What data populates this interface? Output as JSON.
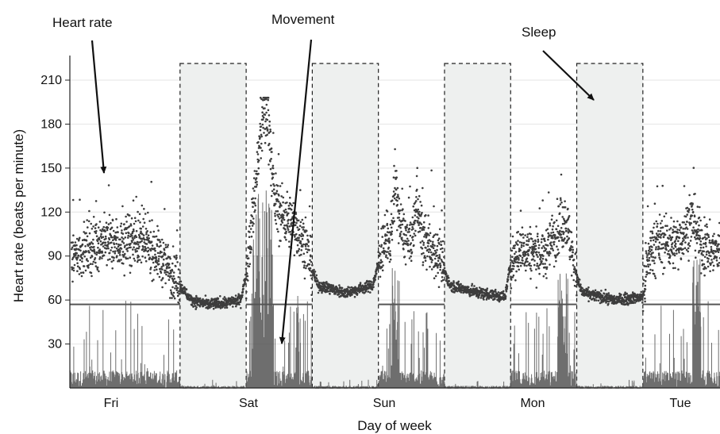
{
  "chart_data": {
    "type": "scatter",
    "title": "",
    "xlabel": "Day of week",
    "ylabel": "Heart rate (beats per minute)",
    "x_categories": [
      "Fri",
      "Sat",
      "Sun",
      "Mon",
      "Tue"
    ],
    "yticks": [
      30,
      60,
      90,
      120,
      150,
      180,
      210
    ],
    "ylim": [
      0,
      210
    ],
    "grid": "horizontal",
    "annotations": [
      "Heart rate",
      "Movement",
      "Sleep"
    ],
    "sleep_periods": [
      {
        "start_hour": 20,
        "end_hour": 32
      },
      {
        "start_hour": 44,
        "end_hour": 56
      },
      {
        "start_hour": 68,
        "end_hour": 80
      },
      {
        "start_hour": 92,
        "end_hour": 104
      }
    ],
    "reference_line_bpm": 57,
    "series": [
      {
        "name": "Heart rate",
        "kind": "scatter",
        "color": "#444444",
        "profile": [
          [
            0,
            88
          ],
          [
            3,
            95
          ],
          [
            6,
            100
          ],
          [
            9,
            98
          ],
          [
            12,
            102
          ],
          [
            15,
            95
          ],
          [
            18,
            82
          ],
          [
            20,
            70
          ],
          [
            22,
            60
          ],
          [
            25,
            57
          ],
          [
            28,
            58
          ],
          [
            31,
            60
          ],
          [
            32,
            78
          ],
          [
            33,
            110
          ],
          [
            34,
            150
          ],
          [
            35,
            185
          ],
          [
            36,
            188
          ],
          [
            37,
            130
          ],
          [
            38,
            120
          ],
          [
            41,
            110
          ],
          [
            43,
            95
          ],
          [
            44,
            80
          ],
          [
            45,
            70
          ],
          [
            50,
            65
          ],
          [
            55,
            70
          ],
          [
            56,
            85
          ],
          [
            57,
            100
          ],
          [
            58,
            95
          ],
          [
            59,
            140
          ],
          [
            60,
            110
          ],
          [
            62,
            95
          ],
          [
            63,
            130
          ],
          [
            64,
            100
          ],
          [
            66,
            95
          ],
          [
            68,
            80
          ],
          [
            69,
            70
          ],
          [
            74,
            65
          ],
          [
            79,
            62
          ],
          [
            80,
            85
          ],
          [
            82,
            95
          ],
          [
            86,
            90
          ],
          [
            88,
            105
          ],
          [
            90,
            115
          ],
          [
            92,
            75
          ],
          [
            93,
            65
          ],
          [
            99,
            60
          ],
          [
            104,
            62
          ],
          [
            105,
            90
          ],
          [
            107,
            100
          ],
          [
            110,
            98
          ],
          [
            113,
            115
          ],
          [
            115,
            95
          ],
          [
            118,
            92
          ]
        ]
      },
      {
        "name": "Movement",
        "kind": "bars",
        "color": "#555555"
      }
    ]
  }
}
